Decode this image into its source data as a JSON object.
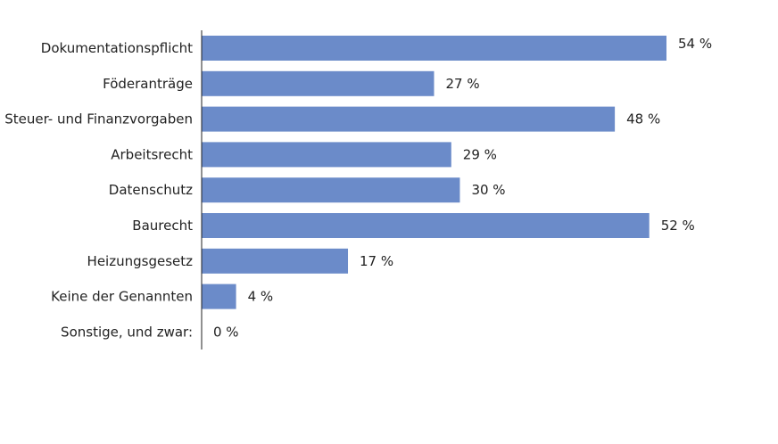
{
  "chart_data": {
    "type": "bar",
    "orientation": "horizontal",
    "categories": [
      "Dokumentationspflicht",
      "Föderanträge",
      "Steuer- und Finanzvorgaben",
      "Arbeitsrecht",
      "Datenschutz",
      "Baurecht",
      "Heizungsgesetz",
      "Keine der Genannten",
      "Sonstige, und zwar:"
    ],
    "values": [
      54,
      27,
      48,
      29,
      30,
      52,
      17,
      4,
      0
    ],
    "value_labels": [
      "54 %",
      "27 %",
      "48 %",
      "29 %",
      "30 %",
      "52 %",
      "17 %",
      "4 %",
      "0 %"
    ],
    "unit": "%",
    "title": "",
    "xlabel": "",
    "ylabel": "",
    "xlim": [
      0,
      54
    ],
    "grid": false,
    "legend": "none",
    "bar_color": "#6b8bc9",
    "axis_color": "#222222"
  }
}
